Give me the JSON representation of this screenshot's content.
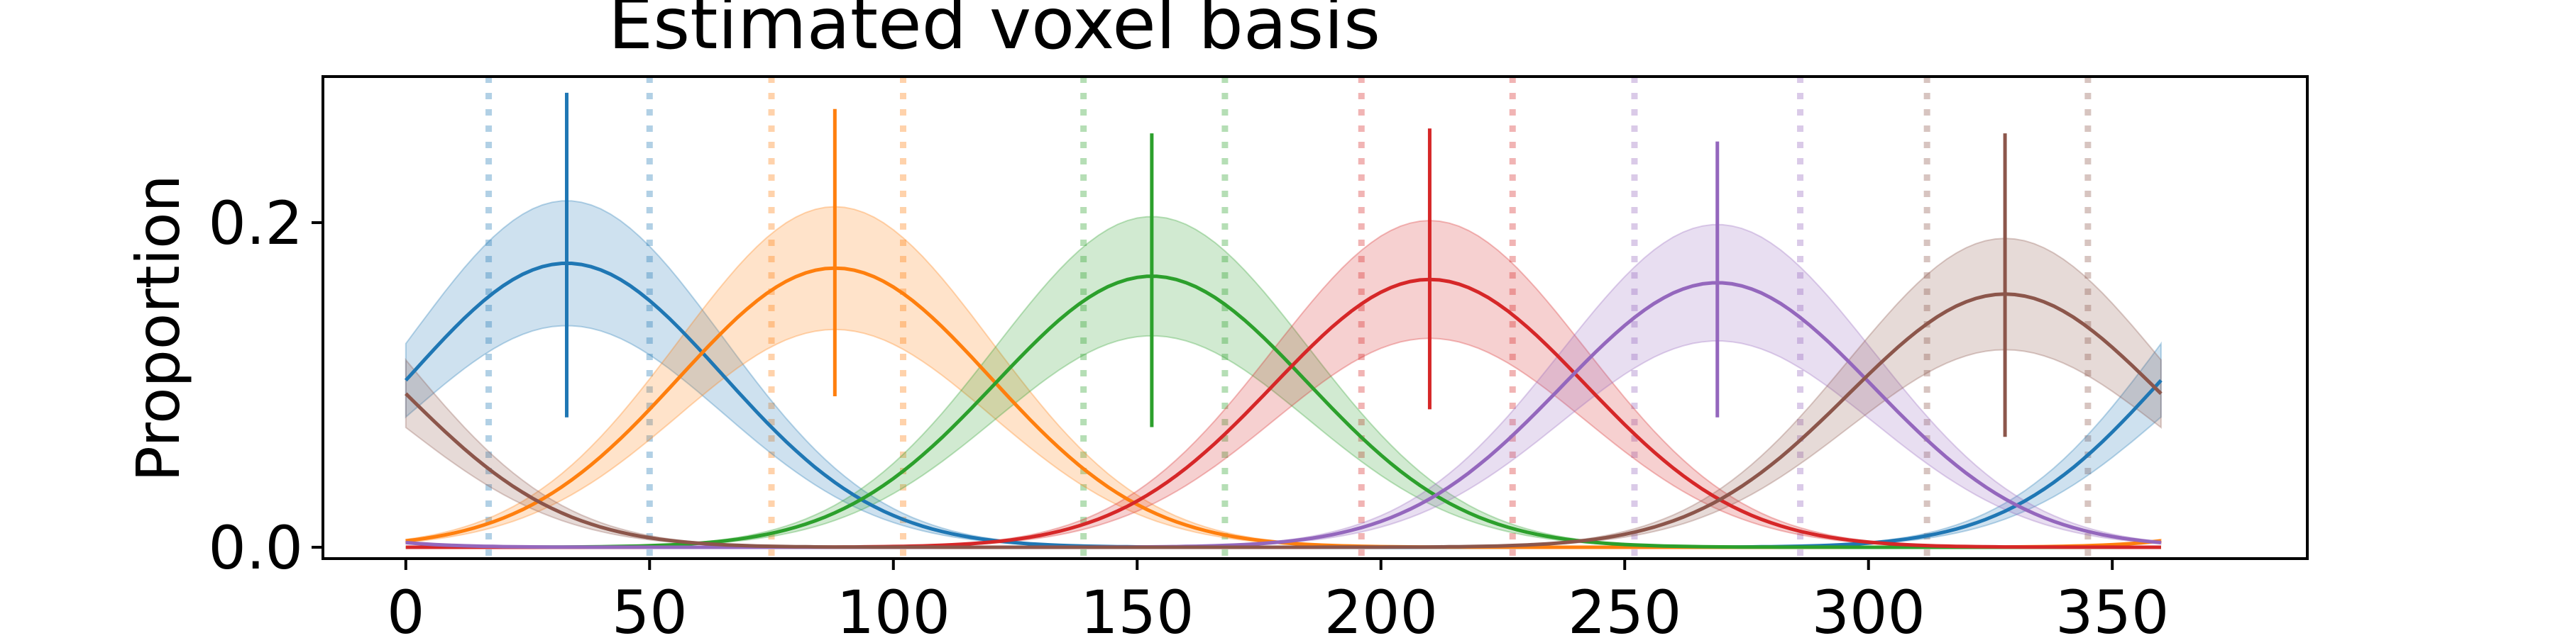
{
  "chart_data": {
    "type": "line",
    "title": "Estimated voxel basis",
    "xlabel": "",
    "ylabel": "Proportion",
    "xlim": [
      -17,
      390
    ],
    "ylim": [
      -0.007,
      0.29
    ],
    "xticks": [
      "0",
      "50",
      "100",
      "150",
      "200",
      "250",
      "300",
      "350"
    ],
    "yticks": [
      "0.0",
      "0.2"
    ],
    "grid": false,
    "legend": "none",
    "series": [
      {
        "color": "#1f77b4",
        "peak_x": 33,
        "peak_y": 0.175,
        "width_sd": 32,
        "band_fraction": 0.22,
        "vline": [
          0.08,
          0.28
        ],
        "dotted_x": [
          17,
          50
        ]
      },
      {
        "color": "#ff7f0e",
        "peak_x": 88,
        "peak_y": 0.172,
        "width_sd": 32,
        "band_fraction": 0.22,
        "vline": [
          0.093,
          0.27
        ],
        "dotted_x": [
          75,
          102
        ]
      },
      {
        "color": "#2ca02c",
        "peak_x": 153,
        "peak_y": 0.167,
        "width_sd": 32,
        "band_fraction": 0.22,
        "vline": [
          0.074,
          0.255
        ],
        "dotted_x": [
          139,
          168
        ]
      },
      {
        "color": "#d62728",
        "peak_x": 210,
        "peak_y": 0.165,
        "width_sd": 32,
        "band_fraction": 0.22,
        "vline": [
          0.085,
          0.258
        ],
        "dotted_x": [
          196,
          227
        ]
      },
      {
        "color": "#9467bd",
        "peak_x": 269,
        "peak_y": 0.163,
        "width_sd": 32,
        "band_fraction": 0.22,
        "vline": [
          0.08,
          0.25
        ],
        "dotted_x": [
          252,
          286
        ]
      },
      {
        "color": "#8c564b",
        "peak_x": 328,
        "peak_y": 0.156,
        "width_sd": 32,
        "band_fraction": 0.22,
        "vline": [
          0.068,
          0.255
        ],
        "dotted_x": [
          312,
          345
        ]
      }
    ]
  }
}
